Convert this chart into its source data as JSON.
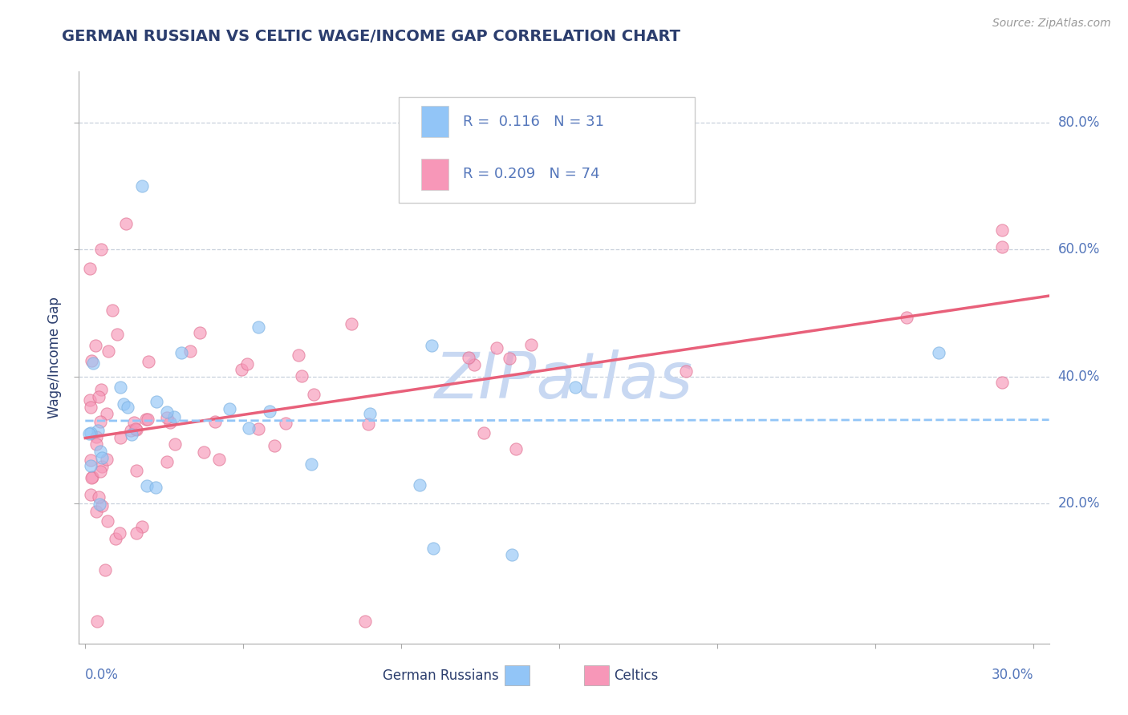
{
  "title": "GERMAN RUSSIAN VS CELTIC WAGE/INCOME GAP CORRELATION CHART",
  "source": "Source: ZipAtlas.com",
  "ylabel": "Wage/Income Gap",
  "y_ticks": [
    0.2,
    0.4,
    0.6,
    0.8
  ],
  "y_tick_labels": [
    "20.0%",
    "40.0%",
    "60.0%",
    "80.0%"
  ],
  "xlim": [
    -0.002,
    0.305
  ],
  "ylim": [
    -0.02,
    0.88
  ],
  "watermark": "ZIPatlas",
  "watermark_color": "#c8d8f2",
  "title_color": "#2c3e6e",
  "axis_color": "#5577bb",
  "source_color": "#999999",
  "german_russian_color": "#92c5f7",
  "celtic_color": "#f797b8",
  "german_russian_edge": "#7ab0e0",
  "celtic_edge": "#e07090",
  "german_russian_line_color": "#92c5f7",
  "celtic_line_color": "#e8607a",
  "grid_color": "#c8d0dc",
  "R_gr": 0.116,
  "N_gr": 31,
  "R_celtic": 0.209,
  "N_celtic": 74,
  "legend_label_gr": "R =  0.116   N = 31",
  "legend_label_celtic": "R = 0.209   N = 74",
  "bottom_label_gr": "German Russians",
  "bottom_label_celtic": "Celtics"
}
